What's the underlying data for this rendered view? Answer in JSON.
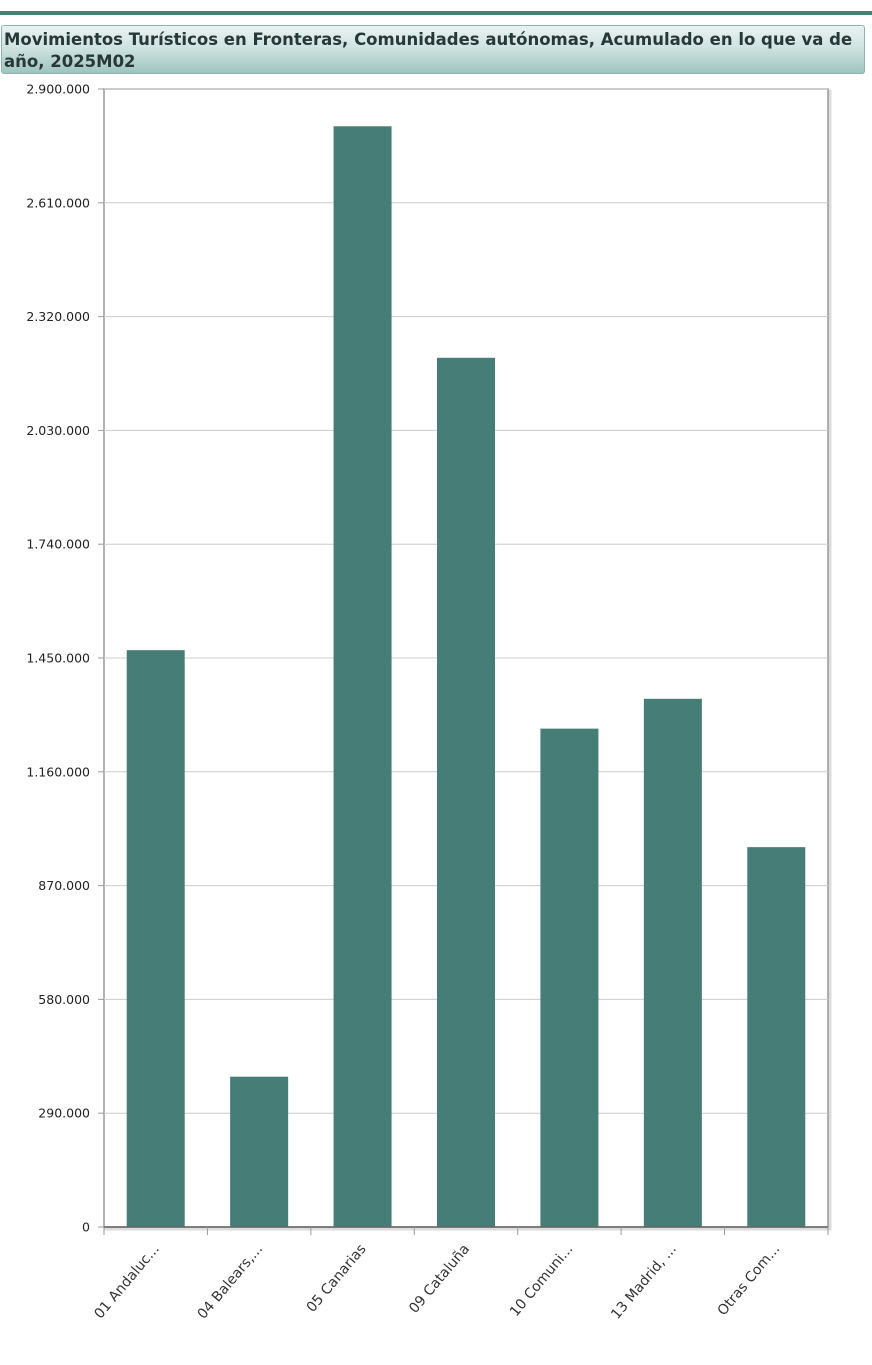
{
  "title": "Movimientos Turísticos en Fronteras, Comunidades autónomas, Acumulado en lo que va de año, 2025M02",
  "colors": {
    "bar": "#467e77",
    "accent": "#477e77",
    "grid": "#cccccc",
    "axis": "#999999"
  },
  "chart_data": {
    "type": "bar",
    "categories": [
      "01 Andaluc...",
      "04 Balears,...",
      "05 Canarias",
      "09 Cataluña",
      "10 Comuni...",
      "13 Madrid, ...",
      "Otras Com..."
    ],
    "values": [
      1470000,
      383000,
      2805000,
      2215000,
      1270000,
      1346000,
      968000
    ],
    "ylim": [
      0,
      2900000
    ],
    "yticks": [
      0,
      290000,
      580000,
      870000,
      1160000,
      1450000,
      1740000,
      2030000,
      2320000,
      2610000,
      2900000
    ],
    "ytick_labels": [
      "0",
      "290.000",
      "580.000",
      "870.000",
      "1.160.000",
      "1.450.000",
      "1.740.000",
      "2.030.000",
      "2.320.000",
      "2.610.000",
      "2.900.000"
    ],
    "grid": true,
    "legend": "none"
  }
}
